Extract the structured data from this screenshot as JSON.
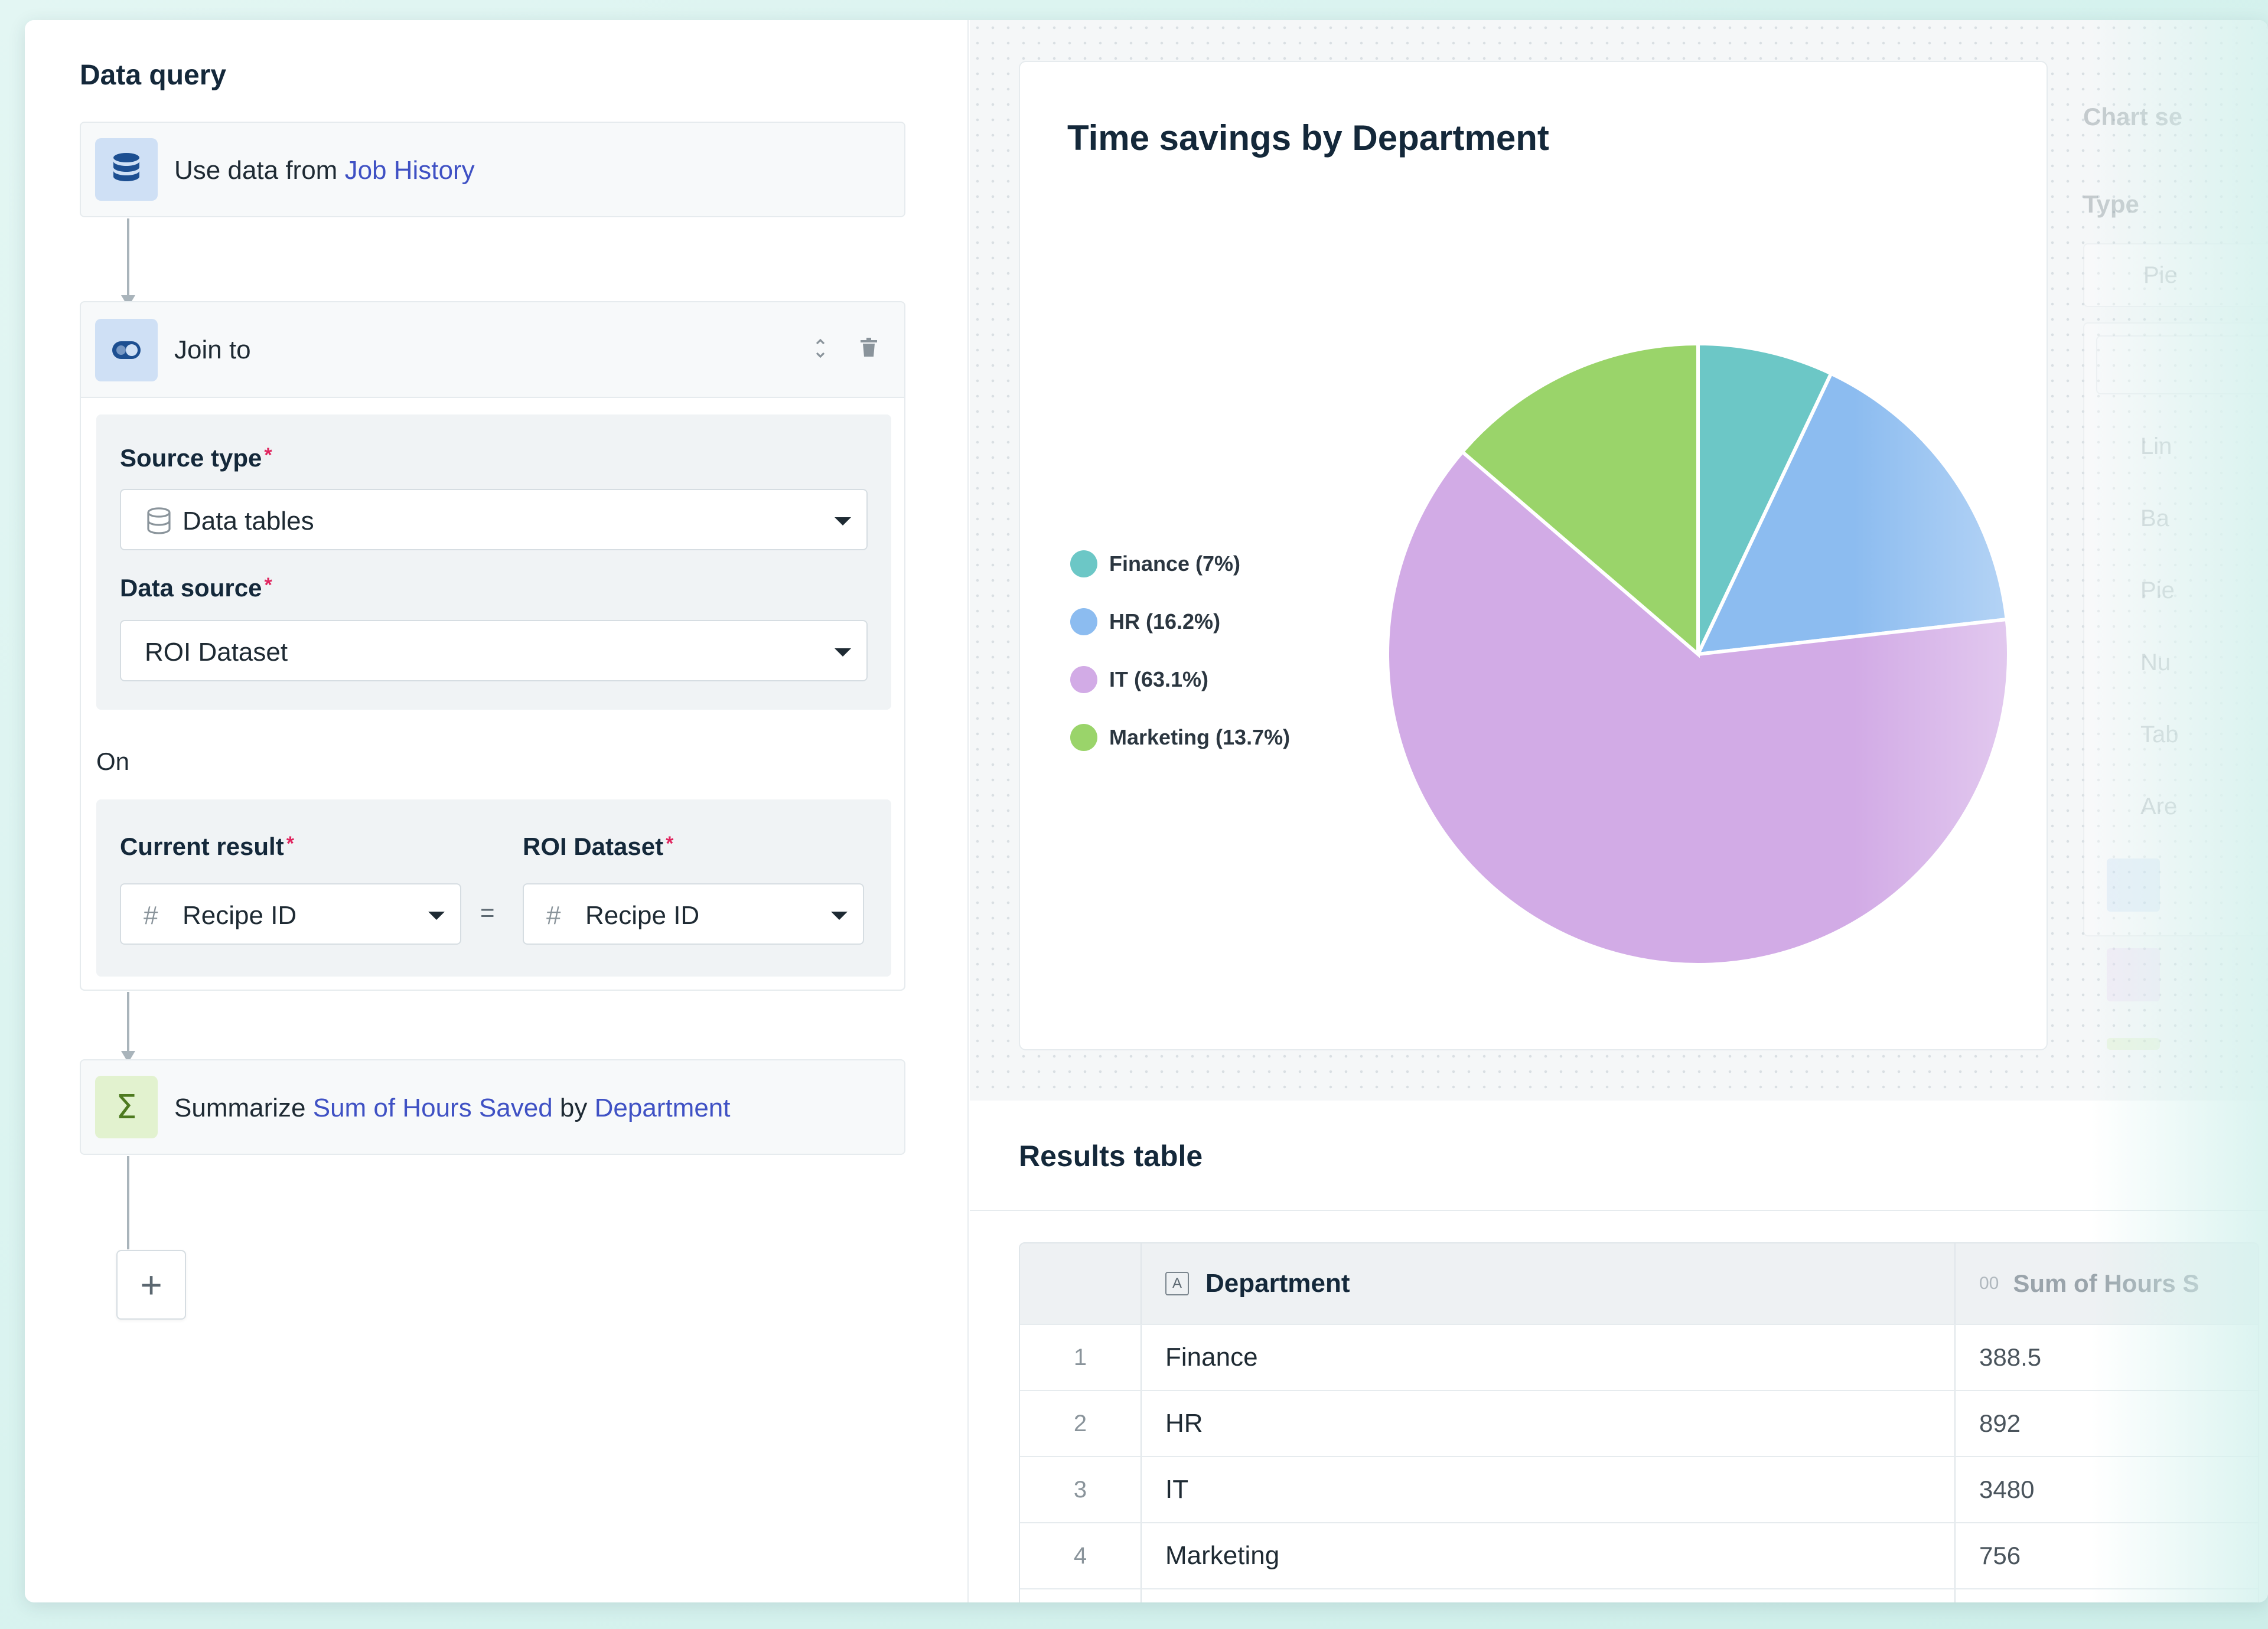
{
  "query": {
    "title": "Data query",
    "step1": {
      "prefix": "Use data from ",
      "source": "Job History"
    },
    "join": {
      "title": "Join to",
      "source_type_label": "Source type",
      "source_type_value": "Data tables",
      "data_source_label": "Data source",
      "data_source_value": "ROI Dataset",
      "on_label": "On",
      "left_label": "Current result",
      "left_value": "Recipe ID",
      "right_label": "ROI Dataset",
      "right_value": "Recipe ID",
      "equals": "="
    },
    "summarize": {
      "prefix": "Summarize ",
      "metric": "Sum of Hours Saved",
      "by": " by ",
      "dimension": "Department"
    },
    "add_label": "+"
  },
  "chart": {
    "title": "Time savings by Department"
  },
  "chart_data": {
    "type": "pie",
    "title": "Time savings by Department",
    "categories": [
      "Finance",
      "HR",
      "IT",
      "Marketing"
    ],
    "values": [
      388.5,
      892,
      3480,
      756
    ],
    "legend_labels": [
      "Finance (7%)",
      "HR (16.2%)",
      "IT (63.1%)",
      "Marketing (13.7%)"
    ],
    "colors": [
      "#6cc7c6",
      "#8cbcf0",
      "#d2abe6",
      "#9ad46a"
    ],
    "legend_position": "left"
  },
  "settings": {
    "header": "Chart se",
    "type_label": "Type",
    "selected": "Pie",
    "options": [
      "Lin",
      "Ba",
      "Pie",
      "Nu",
      "Tab",
      "Are"
    ]
  },
  "results": {
    "title": "Results table",
    "columns": [
      "Department",
      "Sum of Hours S"
    ],
    "rows": [
      {
        "idx": "1",
        "department": "Finance",
        "sum": "388.5"
      },
      {
        "idx": "2",
        "department": "HR",
        "sum": "892"
      },
      {
        "idx": "3",
        "department": "IT",
        "sum": "3480"
      },
      {
        "idx": "4",
        "department": "Marketing",
        "sum": "756"
      }
    ]
  },
  "icons": {
    "step1": "database-icon",
    "join": "toggle-join-icon",
    "summarize": "sigma-icon",
    "reorder": "drag-handle-icon",
    "delete": "trash-icon"
  },
  "colors": {
    "link": "#3f51c4",
    "required": "#e0245e",
    "background": "#d6f2ee"
  }
}
